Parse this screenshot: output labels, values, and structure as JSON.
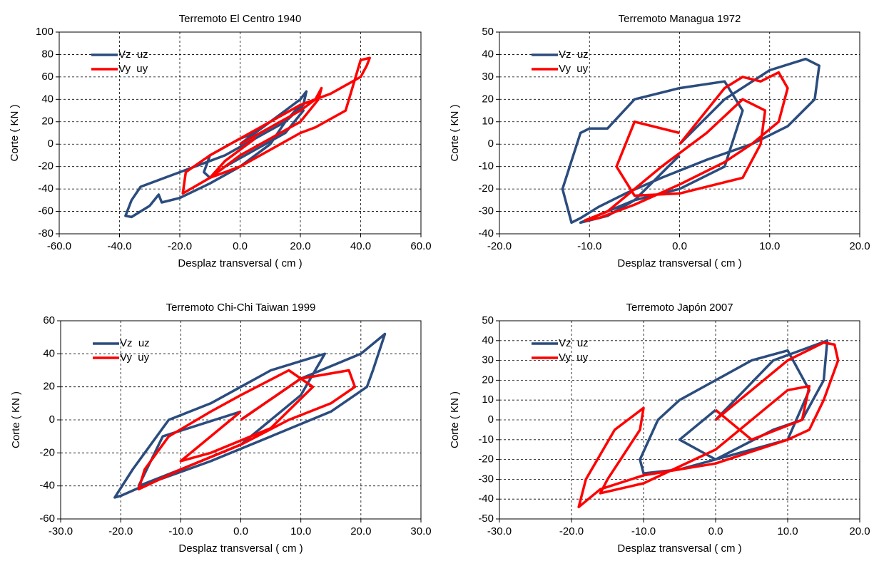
{
  "chart_data": [
    {
      "type": "line",
      "title": "Terremoto El Centro 1940",
      "x_label": "Desplaz transversal ( cm )",
      "y_label": "Corte ( KN )",
      "xlim": [
        -60,
        60
      ],
      "xticks": [
        {
          "value": -60,
          "label": "-60.0"
        },
        {
          "value": -40,
          "label": "-40.0"
        },
        {
          "value": -20,
          "label": "-20.0"
        },
        {
          "value": 0,
          "label": "0.0"
        },
        {
          "value": 20,
          "label": "20.0"
        },
        {
          "value": 40,
          "label": "40.0"
        },
        {
          "value": 60,
          "label": "60.0"
        }
      ],
      "ylim": [
        -80,
        100
      ],
      "yticks": [
        -80,
        -60,
        -40,
        -20,
        0,
        20,
        40,
        60,
        80,
        100
      ],
      "grid": true,
      "legend": "top-left",
      "series": [
        {
          "name": "Vz  uz",
          "color": "#2b4c7e",
          "x": [
            0,
            5,
            10,
            15,
            20,
            22,
            21,
            15,
            5,
            -5,
            -15,
            -25,
            -33,
            -36,
            -38,
            -36,
            -30,
            -27,
            -26,
            -20,
            -10,
            0,
            10,
            15,
            20,
            21,
            15,
            5,
            -5,
            -10,
            -12,
            -10,
            0,
            5
          ],
          "values": [
            0,
            10,
            20,
            30,
            40,
            47,
            35,
            20,
            5,
            -10,
            -20,
            -30,
            -38,
            -50,
            -64,
            -65,
            -55,
            -45,
            -52,
            -48,
            -35,
            -20,
            0,
            20,
            35,
            30,
            10,
            -5,
            -20,
            -30,
            -25,
            -10,
            5,
            10
          ]
        },
        {
          "name": "Vy  uy",
          "color": "#ff0000",
          "x": [
            0,
            10,
            20,
            25,
            27,
            26,
            20,
            10,
            0,
            -10,
            -19,
            -18,
            -10,
            0,
            10,
            20,
            30,
            40,
            42,
            43,
            40,
            35,
            25,
            20,
            10,
            0,
            -10,
            -5,
            5
          ],
          "values": [
            0,
            15,
            30,
            40,
            50,
            40,
            20,
            5,
            -10,
            -30,
            -44,
            -25,
            -10,
            5,
            20,
            35,
            45,
            60,
            70,
            77,
            75,
            30,
            15,
            10,
            -5,
            -20,
            -30,
            -15,
            5
          ]
        }
      ]
    },
    {
      "type": "line",
      "title": "Terremoto Managua 1972",
      "x_label": "Desplaz transversal ( cm )",
      "y_label": "Corte ( KN )",
      "xlim": [
        -20,
        20
      ],
      "xticks": [
        {
          "value": -20,
          "label": "-20.0"
        },
        {
          "value": -10,
          "label": "-10.0"
        },
        {
          "value": 0,
          "label": "0.0"
        },
        {
          "value": 10,
          "label": "10.0"
        },
        {
          "value": 20,
          "label": "20.0"
        }
      ],
      "ylim": [
        -40,
        50
      ],
      "yticks": [
        -40,
        -30,
        -20,
        -10,
        0,
        10,
        20,
        30,
        40,
        50
      ],
      "grid": true,
      "legend": "top-left",
      "series": [
        {
          "name": "Vz  uz",
          "color": "#2b4c7e",
          "x": [
            0,
            5,
            10,
            14,
            15.5,
            15,
            12,
            8,
            3,
            -2,
            -6,
            -9,
            -11,
            -12,
            -13,
            -11,
            -10,
            -8,
            -5,
            0,
            5,
            7,
            5,
            0,
            -5,
            -8,
            -11,
            -5,
            0
          ],
          "values": [
            0,
            20,
            33,
            38,
            35,
            20,
            8,
            0,
            -7,
            -15,
            -22,
            -28,
            -33,
            -35,
            -20,
            5,
            7,
            7,
            20,
            25,
            28,
            15,
            -10,
            -20,
            -25,
            -32,
            -35,
            -25,
            -5
          ]
        },
        {
          "name": "Vy  uy",
          "color": "#ff0000",
          "x": [
            0,
            5,
            7,
            9,
            11,
            12,
            11,
            8,
            5,
            0,
            -5,
            -9,
            -10.5,
            -8,
            -5,
            -2,
            3,
            7,
            9.5,
            9,
            7,
            0,
            -5,
            -7,
            -5,
            0
          ],
          "values": [
            0,
            25,
            30,
            28,
            32,
            25,
            10,
            0,
            -8,
            -18,
            -27,
            -33,
            -34,
            -30,
            -20,
            -10,
            5,
            20,
            15,
            0,
            -15,
            -22,
            -23,
            -10,
            10,
            5
          ]
        }
      ]
    },
    {
      "type": "line",
      "title": "Terremoto Chi-Chi  Taiwan 1999",
      "x_label": "Desplaz transversal ( cm )",
      "y_label": "Corte ( KN )",
      "xlim": [
        -30,
        30
      ],
      "xticks": [
        {
          "value": -30,
          "label": "-30.0"
        },
        {
          "value": -20,
          "label": "-20.0"
        },
        {
          "value": -10,
          "label": "-10.0"
        },
        {
          "value": 0,
          "label": "0.0"
        },
        {
          "value": 10,
          "label": "10.0"
        },
        {
          "value": 20,
          "label": "20.0"
        },
        {
          "value": 30,
          "label": "30.0"
        }
      ],
      "ylim": [
        -60,
        60
      ],
      "yticks": [
        -60,
        -40,
        -20,
        0,
        20,
        40,
        60
      ],
      "grid": true,
      "legend": "top-left",
      "series": [
        {
          "name": "Vz  uz",
          "color": "#2b4c7e",
          "x": [
            0,
            10,
            20,
            24,
            22,
            21,
            15,
            5,
            -5,
            -15,
            -20,
            -21,
            -18,
            -12,
            -5,
            0,
            5,
            14,
            10,
            0,
            -10,
            -17,
            -13,
            0
          ],
          "values": [
            0,
            25,
            40,
            52,
            30,
            20,
            5,
            -10,
            -25,
            -38,
            -46,
            -47,
            -30,
            0,
            10,
            20,
            30,
            40,
            15,
            -15,
            -30,
            -40,
            -10,
            5
          ]
        },
        {
          "name": "Vy  uy",
          "color": "#ff0000",
          "x": [
            0,
            10,
            18,
            19,
            15,
            8,
            0,
            -10,
            -17,
            -16,
            -12,
            -5,
            0,
            8,
            12,
            5,
            -5,
            -10,
            0
          ],
          "values": [
            0,
            25,
            30,
            20,
            10,
            0,
            -15,
            -30,
            -42,
            -30,
            -10,
            5,
            15,
            30,
            20,
            -5,
            -20,
            -25,
            5
          ]
        }
      ]
    },
    {
      "type": "line",
      "title": "Terremoto Japón 2007",
      "x_label": "Desplaz transversal ( cm )",
      "y_label": "Corte ( KN )",
      "xlim": [
        -30,
        20
      ],
      "xticks": [
        {
          "value": -30,
          "label": "-30.0"
        },
        {
          "value": -20,
          "label": "-20.0"
        },
        {
          "value": -10,
          "label": "-10.0"
        },
        {
          "value": 0,
          "label": "0.0"
        },
        {
          "value": 10,
          "label": "10.0"
        },
        {
          "value": 20,
          "label": "20.0"
        }
      ],
      "ylim": [
        -50,
        50
      ],
      "yticks": [
        -50,
        -40,
        -30,
        -20,
        -10,
        0,
        10,
        20,
        30,
        40,
        50
      ],
      "grid": true,
      "legend": "top-left",
      "series": [
        {
          "name": "Vz  uz",
          "color": "#2b4c7e",
          "x": [
            0,
            8,
            14,
            15.5,
            15,
            12,
            8,
            0,
            -5,
            -10,
            -10.5,
            -8,
            -5,
            0,
            5,
            10,
            13,
            10,
            0,
            -5,
            0
          ],
          "values": [
            0,
            30,
            38,
            40,
            20,
            0,
            -5,
            -20,
            -25,
            -27,
            -20,
            0,
            10,
            20,
            30,
            35,
            15,
            -10,
            -20,
            -10,
            5
          ]
        },
        {
          "name": "Vy  uy",
          "color": "#ff0000",
          "x": [
            0,
            10,
            15,
            16.5,
            17,
            15,
            13,
            10,
            0,
            -10,
            -16,
            -19,
            -18,
            -14,
            -10,
            -10.5,
            -15,
            -16,
            -10,
            0,
            10,
            13,
            12,
            5,
            0
          ],
          "values": [
            0,
            30,
            39,
            38,
            30,
            10,
            -5,
            -10,
            -22,
            -28,
            -35,
            -44,
            -30,
            -5,
            6,
            -5,
            -30,
            -37,
            -32,
            -15,
            15,
            17,
            0,
            -10,
            5
          ]
        }
      ]
    }
  ]
}
